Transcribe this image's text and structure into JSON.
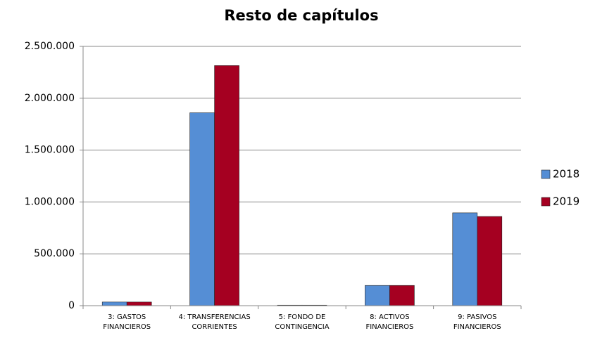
{
  "chart_data": {
    "type": "bar",
    "title": "Resto de capítulos",
    "categories": [
      "3: GASTOS\nFINANCIEROS",
      "4: TRANSFERENCIAS\nCORRIENTES",
      "5: FONDO DE\nCONTINGENCIA",
      "8: ACTIVOS\nFINANCIEROS",
      "9: PASIVOS\nFINANCIEROS"
    ],
    "series": [
      {
        "name": "2018",
        "color": "#558ed5",
        "values": [
          35000,
          1860000,
          5000,
          195000,
          895000
        ]
      },
      {
        "name": "2019",
        "color": "#a50021",
        "values": [
          35000,
          2315000,
          5000,
          195000,
          860000
        ]
      }
    ],
    "ylim": [
      0,
      2500000
    ],
    "yticks": [
      0,
      {
        "value": 500000,
        "label": "500.000"
      },
      {
        "value": 1000000,
        "label": "1.000.000"
      },
      {
        "value": 1500000,
        "label": "1.500.000"
      },
      {
        "value": 2000000,
        "label": "2.000.000"
      },
      {
        "value": 2500000,
        "label": "2.500.000"
      }
    ],
    "grid": true,
    "legend": "right"
  }
}
